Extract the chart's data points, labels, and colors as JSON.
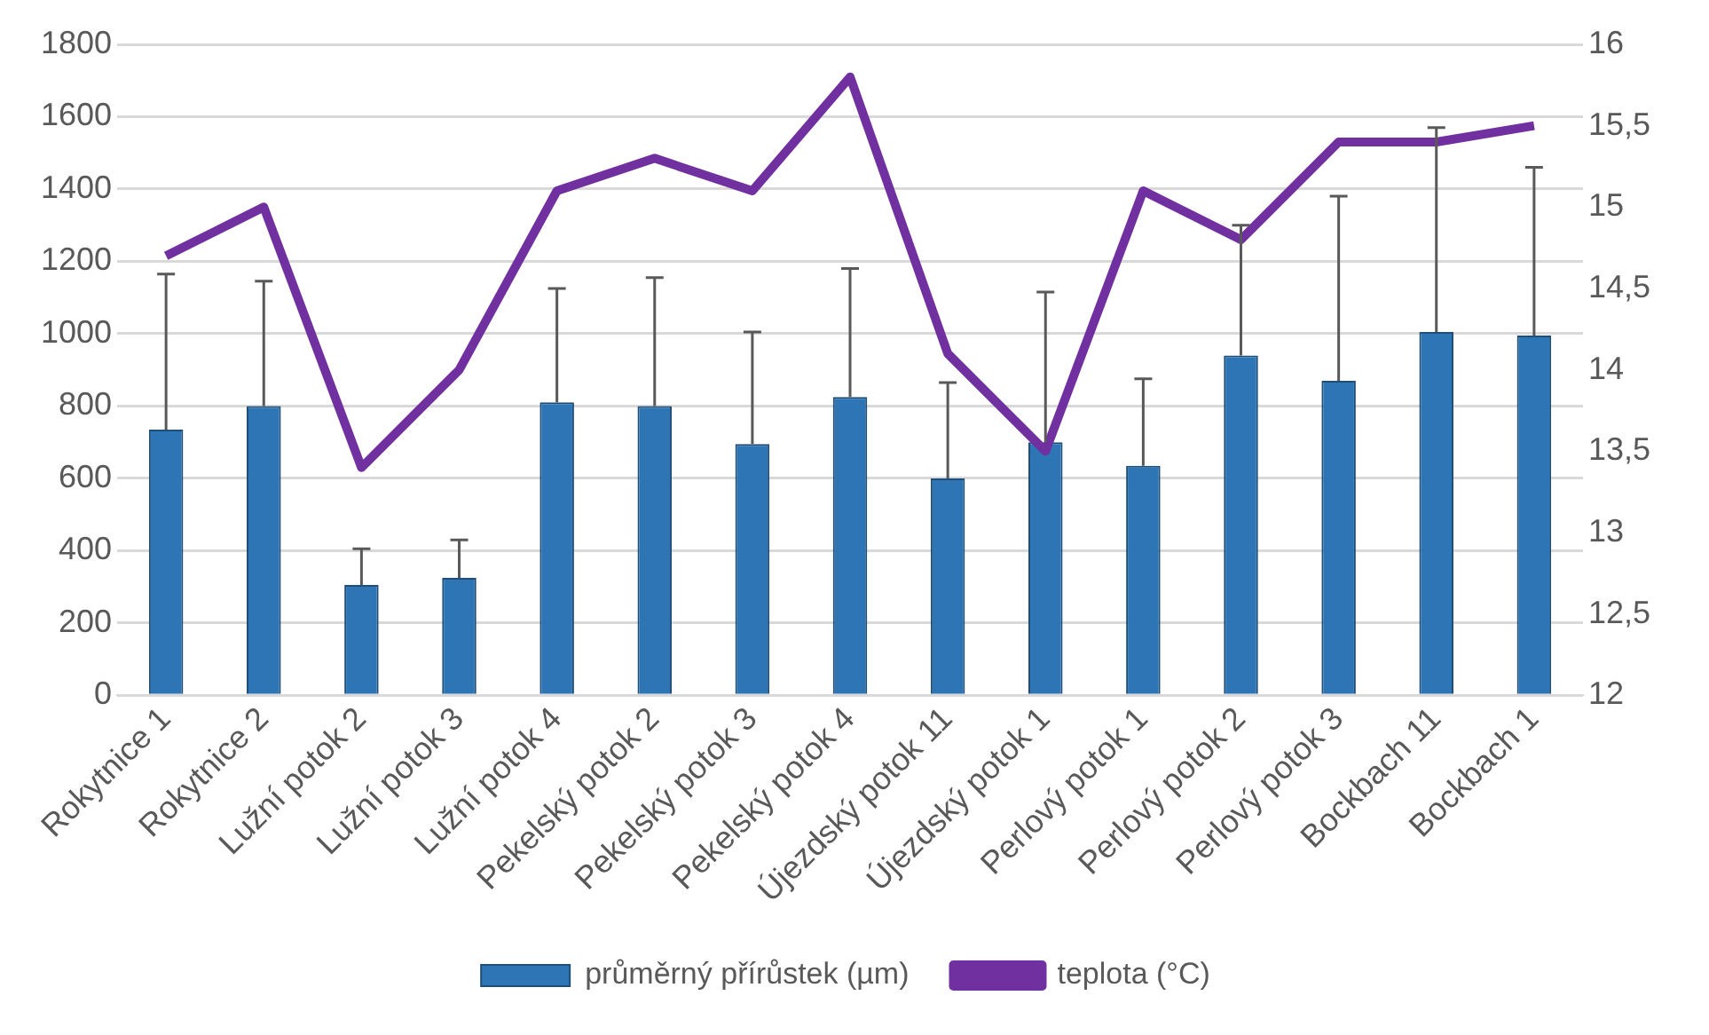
{
  "chart_data": {
    "type": "bar",
    "categories": [
      "Rokytnice 1",
      "Rokytnice 2",
      "Lužní potok 2",
      "Lužní potok 3",
      "Lužní potok 4",
      "Pekelský potok 2",
      "Pekelský potok 3",
      "Pekelský potok 4",
      "Újezdský potok 11",
      "Újezdský potok 1",
      "Perlový potok 1",
      "Perlový potok 2",
      "Perlový potok 3",
      "Bockbach 11",
      "Bockbach 1"
    ],
    "series": [
      {
        "name": "průměrný přírůstek (µm)",
        "color": "#2e75b6",
        "values": [
          735,
          800,
          305,
          325,
          810,
          800,
          695,
          825,
          600,
          700,
          635,
          940,
          870,
          1005,
          995
        ],
        "errors": [
          [
            735,
            1165
          ],
          [
            800,
            1145
          ],
          [
            305,
            405
          ],
          [
            325,
            430
          ],
          [
            810,
            1125
          ],
          [
            800,
            1155
          ],
          [
            695,
            1005
          ],
          [
            825,
            1180
          ],
          [
            600,
            865
          ],
          [
            700,
            1115
          ],
          [
            635,
            875
          ],
          [
            940,
            1300
          ],
          [
            870,
            1380
          ],
          [
            1005,
            1570
          ],
          [
            995,
            1460
          ]
        ]
      },
      {
        "name": "teplota (°C)",
        "type": "line",
        "axis": "y2",
        "color": "#7030a0",
        "values": [
          14.7,
          15,
          13.4,
          14,
          15.1,
          15.3,
          15.1,
          15.8,
          14.1,
          13.5,
          15.1,
          14.8,
          15.4,
          15.4,
          15.5
        ]
      }
    ],
    "ylim": [
      0,
      1800
    ],
    "yticks": [
      0,
      200,
      400,
      600,
      800,
      1000,
      1200,
      1400,
      1600,
      1800
    ],
    "y2lim": [
      12,
      16
    ],
    "y2ticks": [
      12,
      {
        "value": 12.5,
        "label": "12,5"
      },
      13,
      {
        "value": 13.5,
        "label": "13,5"
      },
      14,
      {
        "value": 14.5,
        "label": "14,5"
      },
      15,
      {
        "value": 15.5,
        "label": "15,5"
      },
      16
    ],
    "grid": "y",
    "legend": "bottom",
    "marker": "none",
    "line_style": "solid"
  }
}
